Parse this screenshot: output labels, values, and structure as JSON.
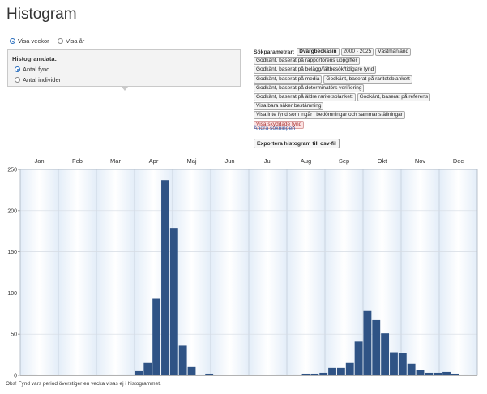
{
  "page": {
    "title": "Histogram"
  },
  "period": {
    "options": [
      {
        "label": "Visa veckor",
        "selected": true
      },
      {
        "label": "Visa år",
        "selected": false
      }
    ]
  },
  "histogram_panel": {
    "label": "Histogramdata:",
    "options": [
      {
        "label": "Antal fynd",
        "selected": true
      },
      {
        "label": "Antal individer",
        "selected": false
      }
    ]
  },
  "search_params": {
    "label": "Sökparametrar:",
    "rows": [
      [
        "Dvärgbeckasin",
        "2000 - 2025",
        "Västmanland"
      ],
      [
        "Godkänt, baserat på rapportörens uppgifter"
      ],
      [
        "Godkänt, baserat på belägg/fältbesök/tidigare fynd"
      ],
      [
        "Godkänt, baserat på media",
        "Godkänt, baserat på raritetsblankett"
      ],
      [
        "Godkänt, baserat på determinatörs verifiering"
      ],
      [
        "Godkänt, baserat på äldre raritetsblankett",
        "Godkänt, baserat på referens"
      ],
      [
        "Visa bara säker bestämning"
      ],
      [
        "Visa inte fynd som ingår i bedömningar och sammanställningar"
      ],
      [
        "Visa skyddade fynd"
      ]
    ],
    "change_link": "Ändra sökningen"
  },
  "export_button": "Exportera histogram till csv-fil",
  "colors": {
    "bar": "#2f5385",
    "accent": "#2a6ebd",
    "protected_tag": "#fbe3e3"
  },
  "chart_data": {
    "type": "bar",
    "months": [
      "Jan",
      "Feb",
      "Mar",
      "Apr",
      "Maj",
      "Jun",
      "Jul",
      "Aug",
      "Sep",
      "Okt",
      "Nov",
      "Dec"
    ],
    "weeks": [
      1,
      2,
      3,
      4,
      5,
      6,
      7,
      8,
      9,
      10,
      11,
      12,
      13,
      14,
      15,
      16,
      17,
      18,
      19,
      20,
      21,
      22,
      23,
      24,
      25,
      26,
      27,
      28,
      29,
      30,
      31,
      32,
      33,
      34,
      35,
      36,
      37,
      38,
      39,
      40,
      41,
      42,
      43,
      44,
      45,
      46,
      47,
      48,
      49,
      50,
      51,
      52
    ],
    "values": [
      0,
      1,
      0,
      0,
      0,
      0,
      0,
      0,
      0,
      0,
      1,
      1,
      1,
      5,
      15,
      93,
      237,
      179,
      36,
      10,
      1,
      2,
      0,
      0,
      0,
      0,
      0,
      0,
      0,
      1,
      0,
      1,
      2,
      2,
      3,
      9,
      9,
      15,
      41,
      78,
      67,
      51,
      28,
      27,
      14,
      6,
      3,
      3,
      4,
      2,
      1,
      0
    ],
    "ylim": [
      0,
      250
    ],
    "yticks": [
      0,
      50,
      100,
      150,
      200,
      250
    ],
    "grid": true
  },
  "footnote": "Obs! Fynd vars period överstiger en vecka visas ej i histogrammet."
}
